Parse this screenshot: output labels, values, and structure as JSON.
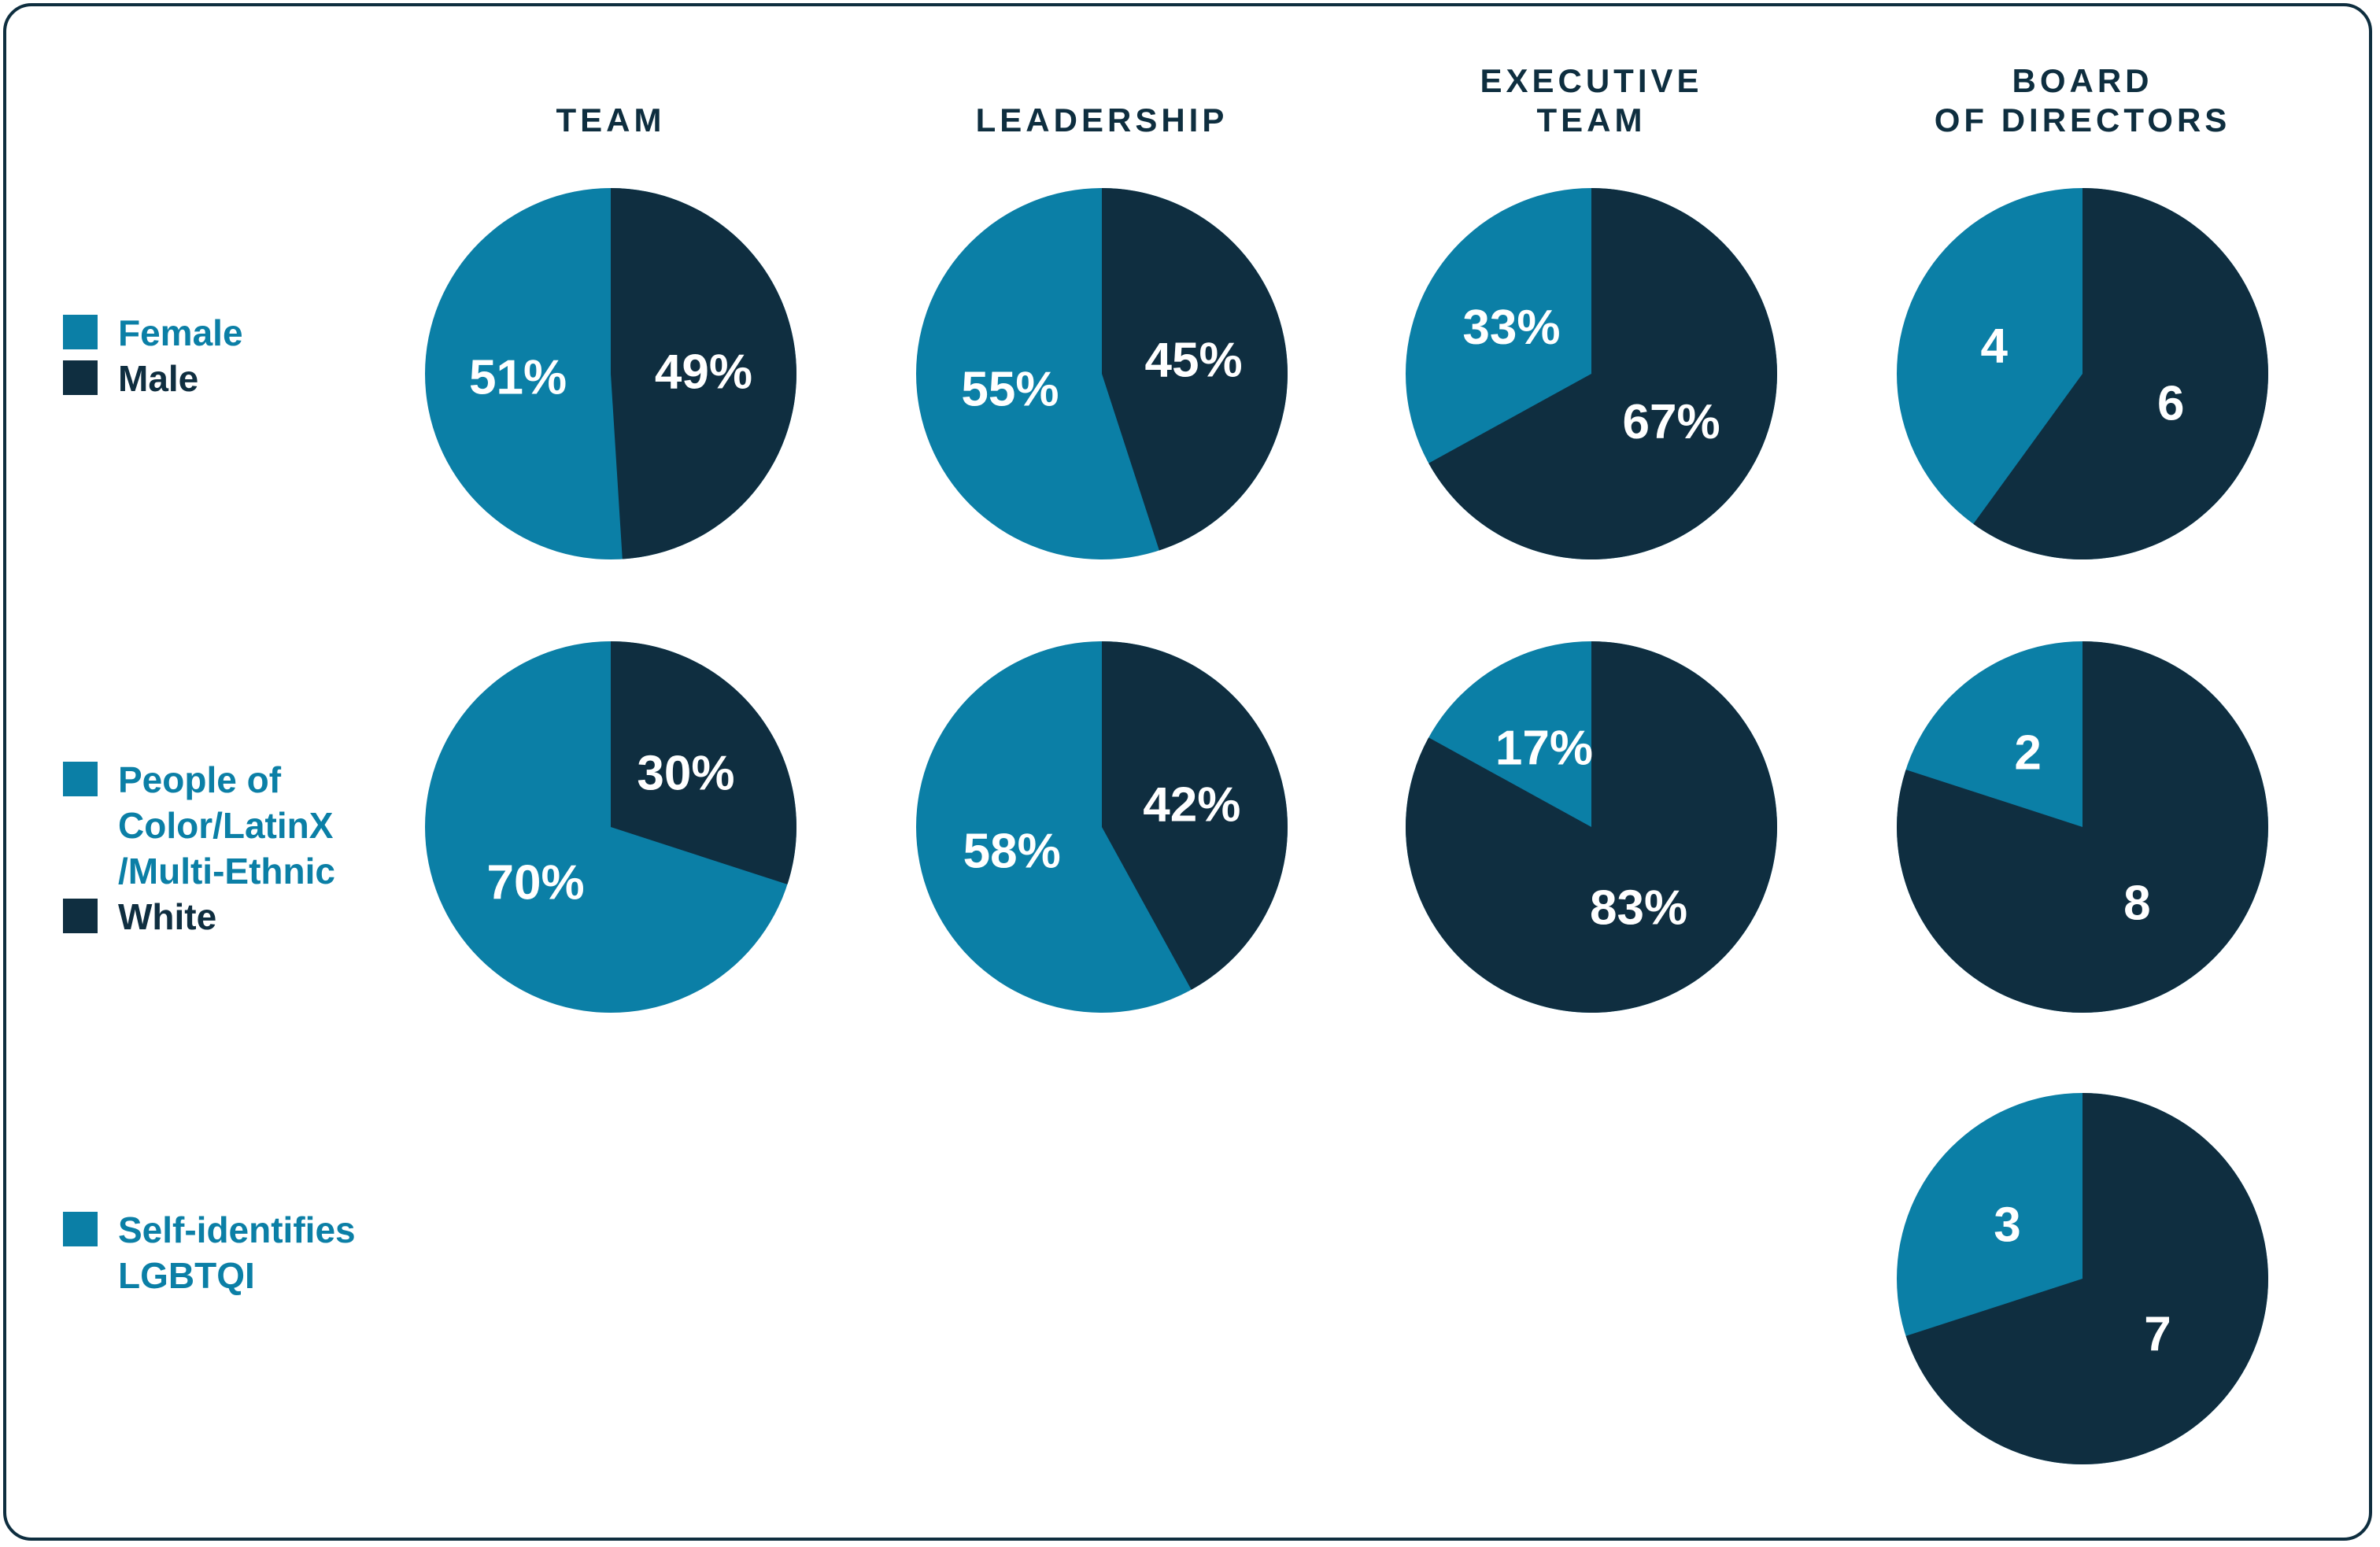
{
  "colors": {
    "primary": "#0b7fa6",
    "secondary": "#0f2e40",
    "frame": "#0e2e3f"
  },
  "headers": [
    "TEAM",
    "LEADERSHIP",
    "EXECUTIVE\nTEAM",
    "BOARD\nOF DIRECTORS"
  ],
  "legend": {
    "gender": {
      "primary": "Female",
      "secondary": "Male"
    },
    "ethnicity": {
      "primary": "People of\nColor/LatinX\n/Multi-Ethnic",
      "secondary": "White"
    },
    "lgbtqi": {
      "primary": "Self-identifies\nLGBTQI"
    }
  },
  "chart_data": [
    {
      "type": "pie",
      "group": "TEAM",
      "metric": "gender",
      "labels": [
        "Female",
        "Male"
      ],
      "values": [
        51,
        49
      ],
      "display": [
        "51%",
        "49%"
      ]
    },
    {
      "type": "pie",
      "group": "LEADERSHIP",
      "metric": "gender",
      "labels": [
        "Female",
        "Male"
      ],
      "values": [
        55,
        45
      ],
      "display": [
        "55%",
        "45%"
      ]
    },
    {
      "type": "pie",
      "group": "EXECUTIVE TEAM",
      "metric": "gender",
      "labels": [
        "Female",
        "Male"
      ],
      "values": [
        33,
        67
      ],
      "display": [
        "33%",
        "67%"
      ]
    },
    {
      "type": "pie",
      "group": "BOARD OF DIRECTORS",
      "metric": "gender",
      "labels": [
        "Female",
        "Male"
      ],
      "values": [
        4,
        6
      ],
      "display": [
        "4",
        "6"
      ]
    },
    {
      "type": "pie",
      "group": "TEAM",
      "metric": "ethnicity",
      "labels": [
        "People of Color/LatinX/Multi-Ethnic",
        "White"
      ],
      "values": [
        70,
        30
      ],
      "display": [
        "70%",
        "30%"
      ]
    },
    {
      "type": "pie",
      "group": "LEADERSHIP",
      "metric": "ethnicity",
      "labels": [
        "People of Color/LatinX/Multi-Ethnic",
        "White"
      ],
      "values": [
        58,
        42
      ],
      "display": [
        "58%",
        "42%"
      ]
    },
    {
      "type": "pie",
      "group": "EXECUTIVE TEAM",
      "metric": "ethnicity",
      "labels": [
        "People of Color/LatinX/Multi-Ethnic",
        "White"
      ],
      "values": [
        17,
        83
      ],
      "display": [
        "17%",
        "83%"
      ]
    },
    {
      "type": "pie",
      "group": "BOARD OF DIRECTORS",
      "metric": "ethnicity",
      "labels": [
        "People of Color/LatinX/Multi-Ethnic",
        "White"
      ],
      "values": [
        2,
        8
      ],
      "display": [
        "2",
        "8"
      ]
    },
    {
      "type": "pie",
      "group": "BOARD OF DIRECTORS",
      "metric": "lgbtqi",
      "labels": [
        "Self-identifies LGBTQI",
        ""
      ],
      "values": [
        3,
        7
      ],
      "display": [
        "3",
        "7"
      ]
    }
  ]
}
